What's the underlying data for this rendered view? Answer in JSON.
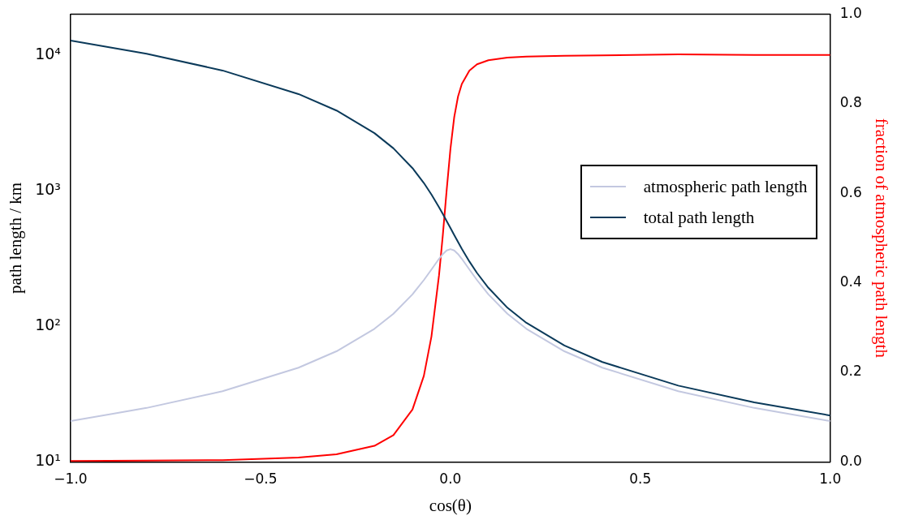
{
  "chart_data": {
    "type": "line",
    "xlabel": "cos(θ)",
    "ylabel": "path length / km",
    "y2label": "fraction of atmospheric path length",
    "x": [
      -1,
      -0.8,
      -0.6,
      -0.4,
      -0.3,
      -0.2,
      -0.15,
      -0.1,
      -0.07,
      -0.05,
      -0.03,
      -0.02,
      -0.01,
      0,
      0.01,
      0.02,
      0.03,
      0.05,
      0.07,
      0.1,
      0.15,
      0.2,
      0.3,
      0.4,
      0.6,
      0.8,
      1
    ],
    "series": [
      {
        "name": "atmospheric path length",
        "color": "#c3c8e0",
        "values": [
          20,
          25,
          33.2,
          49.5,
          65.4,
          95.8,
          123.8,
          171.9,
          219,
          262,
          314.2,
          340.7,
          361.7,
          370.2,
          361.7,
          340.7,
          314.2,
          262,
          219,
          171.9,
          123.8,
          95.8,
          65.4,
          49.5,
          33.2,
          25,
          20
        ]
      },
      {
        "name": "total path length",
        "color": "#0b3a5a",
        "values": [
          12760,
          10218,
          7679,
          5150,
          3894,
          2653,
          2048,
          1465,
          1138,
          937,
          754,
          672,
          597,
          530,
          470,
          418,
          372,
          300,
          247,
          192,
          137,
          106,
          72.1,
          54.5,
          36.5,
          27.5,
          22
        ]
      },
      {
        "color": "#ff0000",
        "axis": "y2",
        "values": [
          0.002,
          0.003,
          0.004,
          0.01,
          0.017,
          0.036,
          0.06,
          0.117,
          0.192,
          0.28,
          0.417,
          0.507,
          0.606,
          0.699,
          0.77,
          0.816,
          0.844,
          0.874,
          0.888,
          0.897,
          0.903,
          0.905,
          0.907,
          0.908,
          0.91,
          0.909,
          0.909
        ]
      }
    ],
    "xlim": [
      -1,
      1
    ],
    "xticks": [
      {
        "value": -1,
        "label": "−1.0"
      },
      {
        "value": -0.5,
        "label": "−0.5"
      },
      {
        "value": 0,
        "label": "0.0"
      },
      {
        "value": 0.5,
        "label": "0.5"
      },
      {
        "value": 1,
        "label": "1.0"
      }
    ],
    "log": "y",
    "ylim": [
      10,
      20000
    ],
    "yticks": [
      {
        "value": 10,
        "label": "10¹"
      },
      {
        "value": 100,
        "label": "10²"
      },
      {
        "value": 1000,
        "label": "10³"
      },
      {
        "value": 10000,
        "label": "10⁴"
      }
    ],
    "y2lim": [
      0,
      1
    ],
    "y2ticks": [
      {
        "value": 0,
        "label": "0.0"
      },
      {
        "value": 0.2,
        "label": "0.2"
      },
      {
        "value": 0.4,
        "label": "0.4"
      },
      {
        "value": 0.6,
        "label": "0.6"
      },
      {
        "value": 0.8,
        "label": "0.8"
      },
      {
        "value": 1,
        "label": "1.0"
      }
    ],
    "grid": false,
    "legend": "right",
    "marker": "none",
    "line_style": "solid"
  }
}
